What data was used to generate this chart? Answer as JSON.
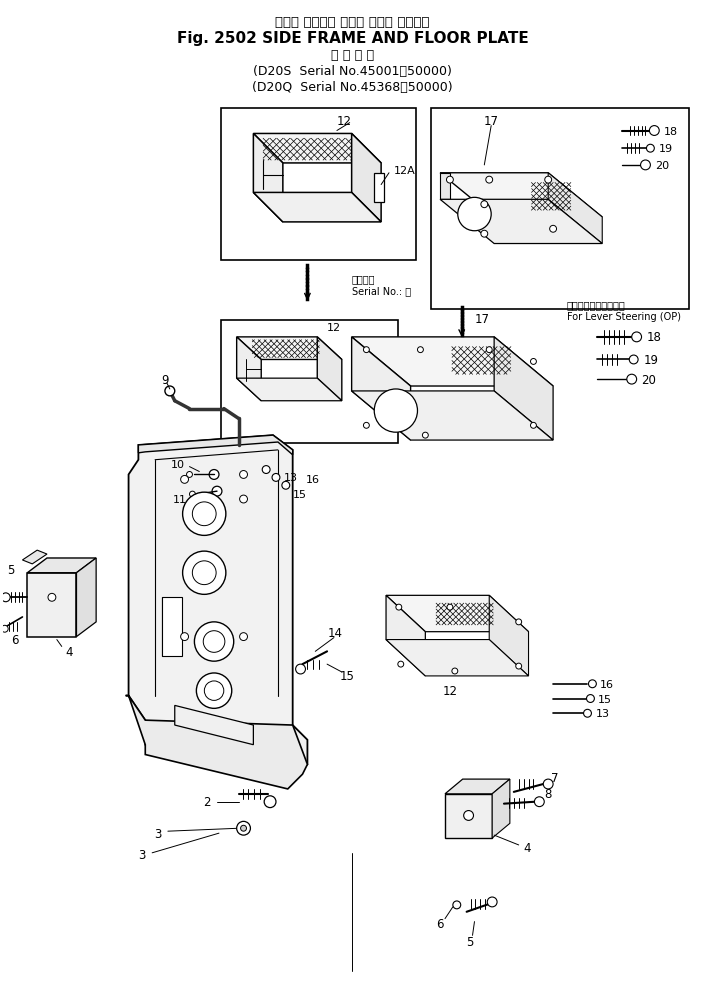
{
  "title_line1": "サイド フレーム および フロア プレート",
  "title_line2": "Fig. 2502 SIDE FRAME AND FLOOR PLATE",
  "title_line3": "適 用 号 機",
  "title_line4": "(D20S  Serial No.45001～50000)",
  "title_line5": "(D20Q  Serial No.45368～50000)",
  "bg_color": "#ffffff",
  "inset1_label_jp": "適用号機",
  "inset1_label_en": "Serial No.: ～",
  "inset2_label_jp": "レバーステアリング用",
  "inset2_label_en": "For Lever Steering (OP)"
}
